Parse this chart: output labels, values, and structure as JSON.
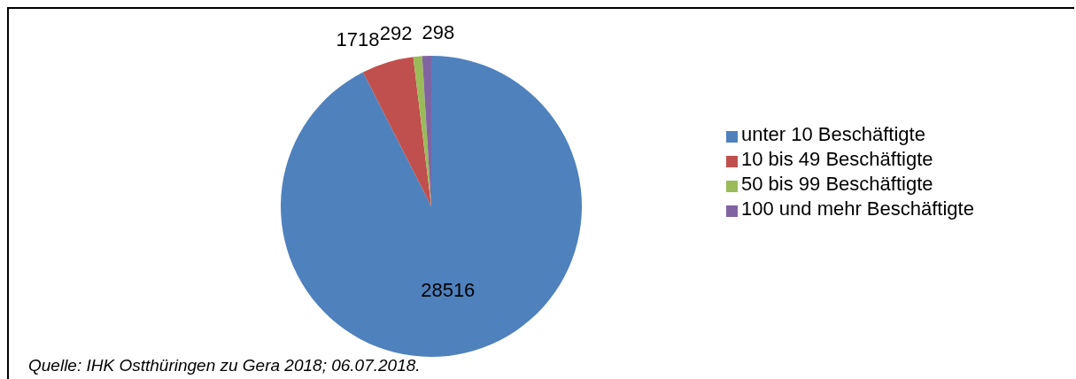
{
  "chart_data": {
    "type": "pie",
    "categories": [
      "unter 10 Beschäftigte",
      "10 bis 49 Beschäftigte",
      "50 bis 99 Beschäftigte",
      "100 und mehr Beschäftigte"
    ],
    "values": [
      28516,
      1718,
      292,
      298
    ],
    "colors": [
      "#4f81bd",
      "#c0504d",
      "#9bbb59",
      "#8064a2"
    ],
    "data_labels": true,
    "legend": "right",
    "annotations": [
      "Quelle: IHK Ostthüringen zu Gera 2018; 06.07.2018."
    ]
  }
}
